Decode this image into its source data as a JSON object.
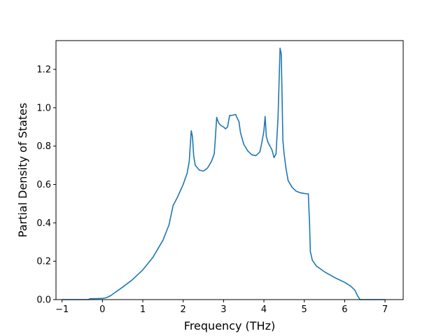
{
  "chart_data": {
    "type": "line",
    "title": "",
    "xlabel": "Frequency (THz)",
    "ylabel": "Partial Density of States",
    "xlim": [
      -1.15,
      7.45
    ],
    "ylim": [
      0.0,
      1.35
    ],
    "xticks": [
      -1,
      0,
      1,
      2,
      3,
      4,
      5,
      6,
      7
    ],
    "xtick_labels": [
      "−1",
      "0",
      "1",
      "2",
      "3",
      "4",
      "5",
      "6",
      "7"
    ],
    "yticks": [
      0.0,
      0.2,
      0.4,
      0.6,
      0.8,
      1.0,
      1.2
    ],
    "ytick_labels": [
      "0.0",
      "0.2",
      "0.4",
      "0.6",
      "0.8",
      "1.0",
      "1.2"
    ],
    "grid": false,
    "colors": {
      "line": "#1f77b4"
    },
    "series": [
      {
        "x": [
          -1.0,
          -0.5,
          -0.35,
          -0.3,
          -0.2,
          0.0,
          0.1,
          0.2,
          0.3,
          0.5,
          0.75,
          1.0,
          1.25,
          1.5,
          1.65,
          1.75,
          1.85,
          2.0,
          2.1,
          2.15,
          2.2,
          2.23,
          2.26,
          2.3,
          2.4,
          2.5,
          2.6,
          2.7,
          2.77,
          2.8,
          2.83,
          2.86,
          2.9,
          2.95,
          3.0,
          3.05,
          3.1,
          3.15,
          3.2,
          3.3,
          3.35,
          3.38,
          3.42,
          3.5,
          3.6,
          3.7,
          3.8,
          3.9,
          3.95,
          4.0,
          4.03,
          4.06,
          4.1,
          4.2,
          4.25,
          4.3,
          4.35,
          4.4,
          4.43,
          4.47,
          4.5,
          4.55,
          4.6,
          4.7,
          4.8,
          4.9,
          5.0,
          5.1,
          5.13,
          5.15,
          5.2,
          5.3,
          5.5,
          5.75,
          6.0,
          6.15,
          6.25,
          6.32,
          6.38,
          6.45,
          7.0
        ],
        "y": [
          0.0,
          0.0,
          0.0,
          0.005,
          0.005,
          0.006,
          0.01,
          0.02,
          0.035,
          0.065,
          0.105,
          0.155,
          0.22,
          0.31,
          0.39,
          0.49,
          0.53,
          0.6,
          0.66,
          0.72,
          0.88,
          0.85,
          0.75,
          0.7,
          0.675,
          0.67,
          0.685,
          0.72,
          0.76,
          0.85,
          0.95,
          0.93,
          0.915,
          0.905,
          0.9,
          0.89,
          0.9,
          0.96,
          0.96,
          0.965,
          0.94,
          0.93,
          0.87,
          0.81,
          0.775,
          0.755,
          0.75,
          0.77,
          0.82,
          0.88,
          0.955,
          0.85,
          0.82,
          0.78,
          0.74,
          0.76,
          0.95,
          1.31,
          1.28,
          0.83,
          0.76,
          0.68,
          0.62,
          0.585,
          0.565,
          0.557,
          0.553,
          0.551,
          0.4,
          0.25,
          0.205,
          0.175,
          0.145,
          0.115,
          0.09,
          0.07,
          0.05,
          0.02,
          0.0,
          0.0,
          0.0
        ]
      }
    ]
  }
}
